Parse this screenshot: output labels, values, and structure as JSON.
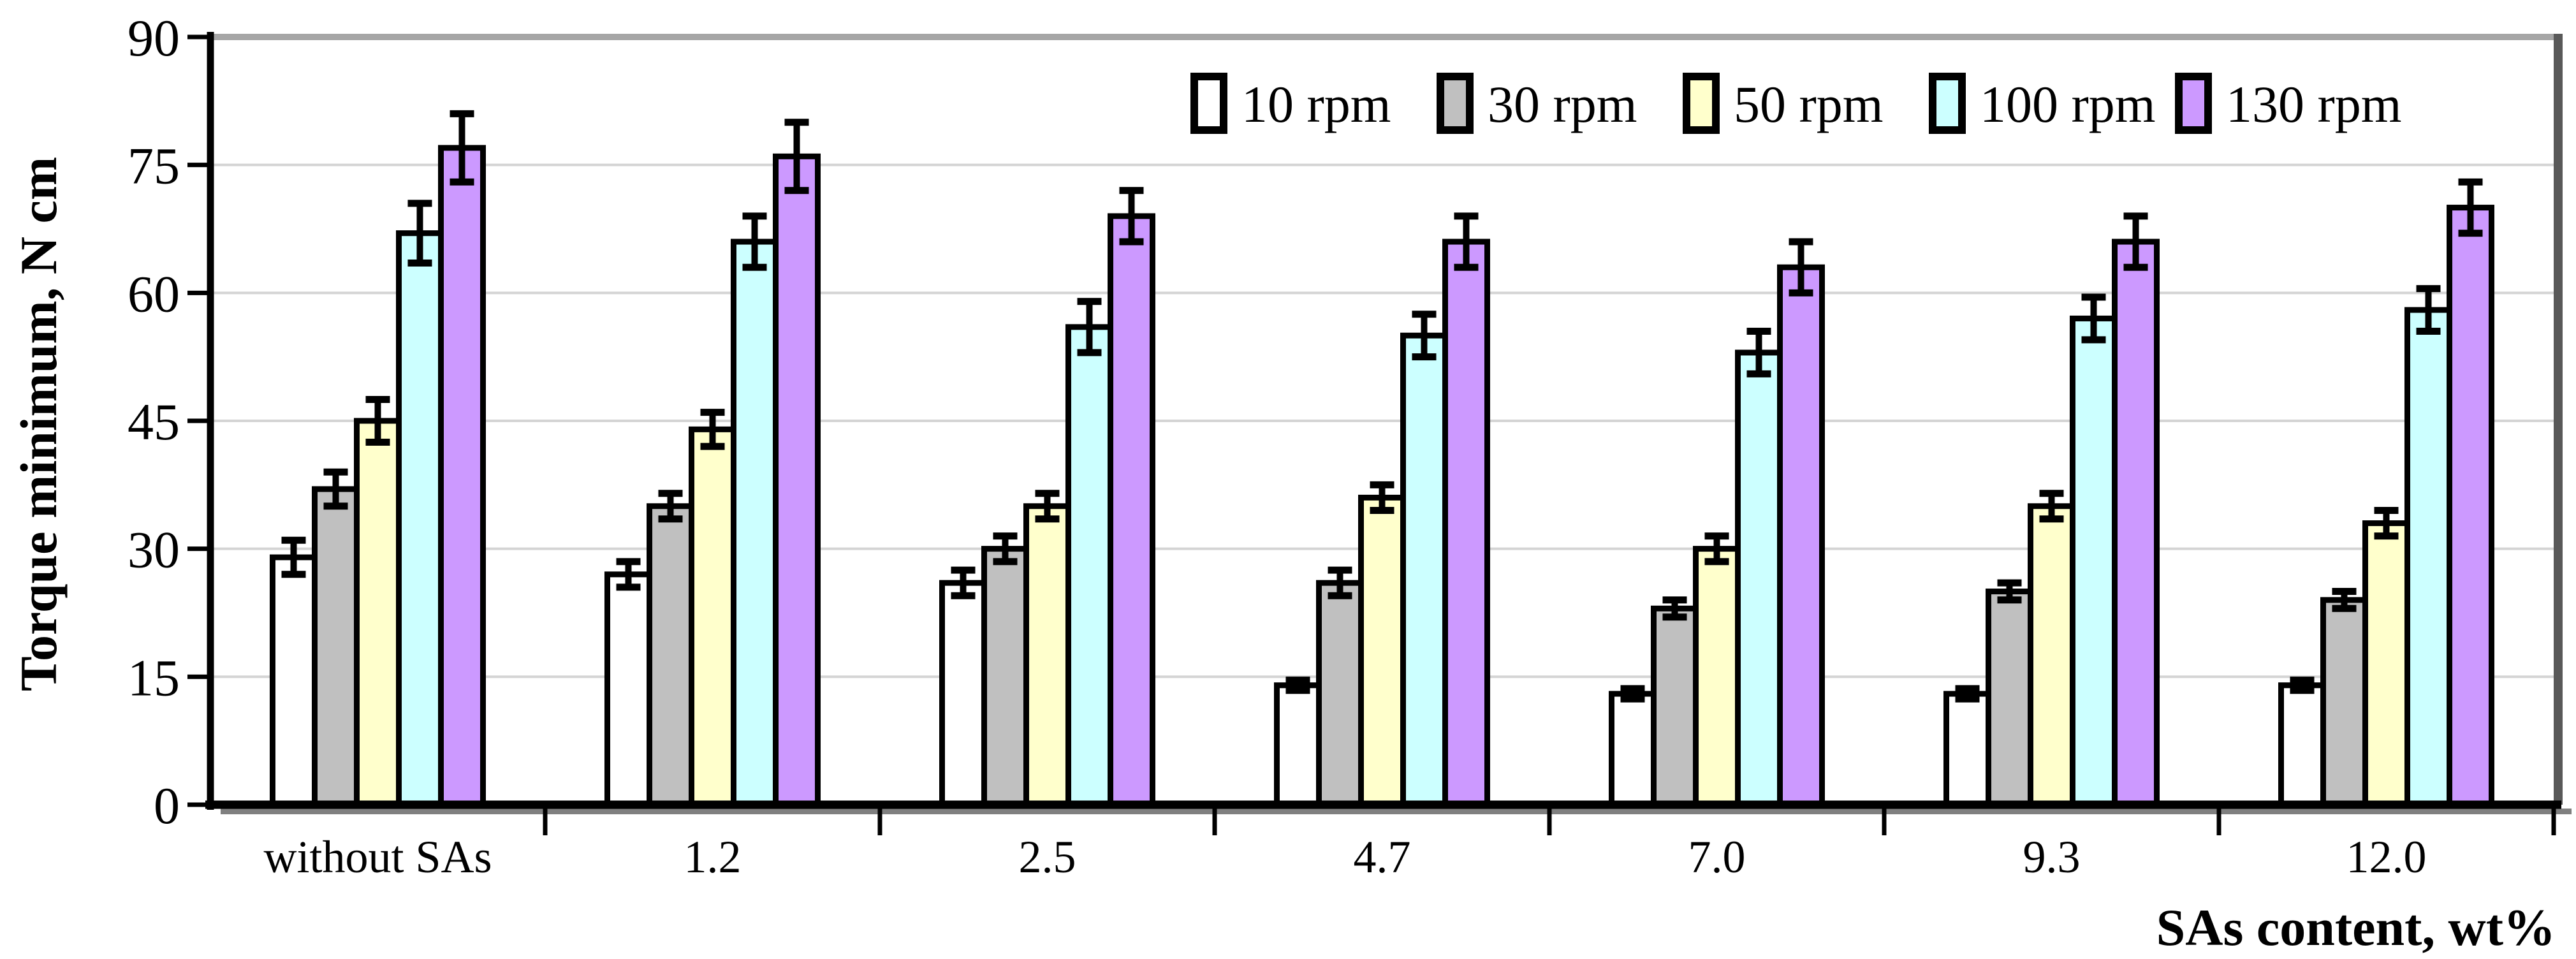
{
  "chart_data": {
    "type": "bar",
    "title": "",
    "xlabel": "SAs content, wt%",
    "ylabel": "Torque minimum, N cm",
    "categories": [
      "without SAs",
      "1.2",
      "2.5",
      "4.7",
      "7.0",
      "9.3",
      "12.0"
    ],
    "y_ticks": [
      0,
      15,
      30,
      45,
      60,
      75,
      90
    ],
    "y_tick_labels": [
      "0",
      "15",
      "30",
      "45",
      "60",
      "75",
      "90"
    ],
    "ylim": [
      0,
      90
    ],
    "grid": true,
    "legend_position": "top-inside-horizontal",
    "error_bars": true,
    "series": [
      {
        "name": "10 rpm",
        "color": "#FFFFFF",
        "values": [
          29,
          27,
          26,
          14,
          13,
          13,
          14
        ],
        "errors": [
          2,
          1.5,
          1.5,
          0.6,
          0.6,
          0.6,
          0.6
        ]
      },
      {
        "name": "30 rpm",
        "color": "#C0C0C0",
        "values": [
          37,
          35,
          30,
          26,
          23,
          25,
          24
        ],
        "errors": [
          2,
          1.5,
          1.5,
          1.5,
          1,
          1,
          1
        ]
      },
      {
        "name": "50 rpm",
        "color": "#FFFFCC",
        "values": [
          45,
          44,
          35,
          36,
          30,
          35,
          33
        ],
        "errors": [
          2.5,
          2,
          1.5,
          1.5,
          1.5,
          1.5,
          1.5
        ]
      },
      {
        "name": "100 rpm",
        "color": "#CCFFFF",
        "values": [
          67,
          66,
          56,
          55,
          53,
          57,
          58
        ],
        "errors": [
          3.5,
          3,
          3,
          2.5,
          2.5,
          2.5,
          2.5
        ]
      },
      {
        "name": "130 rpm",
        "color": "#CC99FF",
        "values": [
          77,
          76,
          69,
          66,
          63,
          66,
          70
        ],
        "errors": [
          4,
          4,
          3,
          3,
          3,
          3,
          3
        ]
      }
    ],
    "colors": {
      "background": "#FFFFFF",
      "bar_border": "#000000",
      "gridline": "#D4D4D4",
      "axis": "#000000",
      "plot_border_top": "#A6A6A6",
      "plot_border_right": "#595959",
      "axis_shadow": "#808080",
      "error_bar": "#000000",
      "text": "#000000"
    }
  }
}
